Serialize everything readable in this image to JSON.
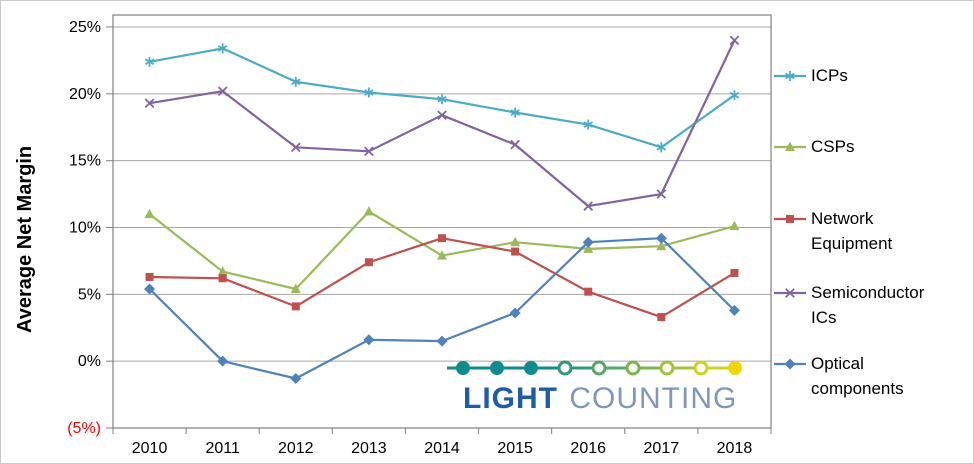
{
  "chart_data": {
    "type": "line",
    "title": "",
    "xlabel": "",
    "ylabel": "Average Net Margin",
    "categories": [
      "2010",
      "2011",
      "2012",
      "2013",
      "2014",
      "2015",
      "2016",
      "2017",
      "2018"
    ],
    "ylim": [
      -5,
      25
    ],
    "ytick_step": 5,
    "ytick_labels": [
      "(5%)",
      "0%",
      "5%",
      "10%",
      "15%",
      "20%",
      "25%"
    ],
    "negative_tick_color": "#FF0000",
    "gridline_color": "#A6A6A6",
    "axis_color": "#808080",
    "grid": true,
    "legend_position": "right",
    "series": [
      {
        "name": "ICPs",
        "color": "#4BACC6",
        "marker": "asterisk",
        "values": [
          22.4,
          23.4,
          20.9,
          20.1,
          19.6,
          18.6,
          17.7,
          16.0,
          19.9
        ]
      },
      {
        "name": "CSPs",
        "color": "#9BBB59",
        "marker": "triangle",
        "values": [
          11.0,
          6.7,
          5.4,
          11.2,
          7.9,
          8.9,
          8.4,
          8.6,
          10.1
        ]
      },
      {
        "name": "Network Equipment",
        "color": "#C0504D",
        "marker": "square",
        "values": [
          6.3,
          6.2,
          4.1,
          7.4,
          9.2,
          8.2,
          5.2,
          3.3,
          6.6
        ]
      },
      {
        "name": "Semiconductor ICs",
        "color": "#8064A2",
        "marker": "x",
        "values": [
          19.3,
          20.2,
          16.0,
          15.7,
          18.4,
          16.2,
          11.6,
          12.5,
          24.0
        ]
      },
      {
        "name": "Optical components",
        "color": "#4F81BD",
        "marker": "diamond",
        "values": [
          5.4,
          0.0,
          -1.3,
          1.6,
          1.5,
          3.6,
          8.9,
          9.2,
          3.8
        ]
      }
    ]
  },
  "logo": {
    "light": "LIGHT",
    "counting": "COUNTING",
    "light_color": "#1F5CA8",
    "counting_color": "#7E97BC",
    "chain_colors": [
      "#0F8B8D",
      "#0F8B8D",
      "#0F8B8D",
      "#31997B",
      "#55A967",
      "#7BB64E",
      "#A3C436",
      "#CCD321",
      "#EFD60C"
    ],
    "chain_filled": [
      true,
      true,
      true,
      false,
      false,
      false,
      false,
      false,
      true
    ]
  }
}
